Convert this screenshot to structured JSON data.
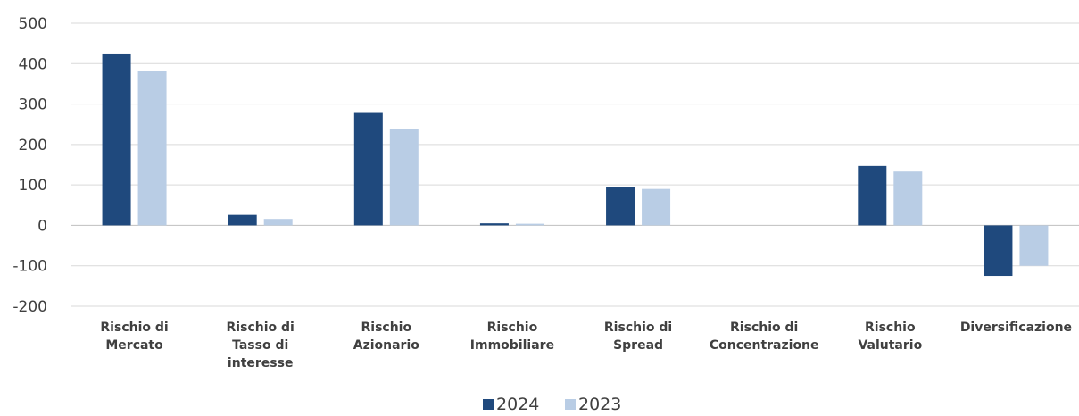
{
  "chart_data": {
    "type": "bar",
    "categories": [
      [
        "Rischio di",
        "Mercato"
      ],
      [
        "Rischio di",
        "Tasso di",
        "interesse"
      ],
      [
        "Rischio",
        "Azionario"
      ],
      [
        "Rischio",
        "Immobiliare"
      ],
      [
        "Rischio di",
        "Spread"
      ],
      [
        "Rischio di",
        "Concentrazione"
      ],
      [
        "Rischio",
        "Valutario"
      ],
      [
        "Diversificazione"
      ]
    ],
    "series": [
      {
        "name": "2024",
        "color": "#1f497d",
        "values": [
          425,
          26,
          278,
          5,
          95,
          0,
          147,
          -125
        ]
      },
      {
        "name": "2023",
        "color": "#b9cde5",
        "values": [
          382,
          16,
          238,
          4,
          90,
          0,
          133,
          -100
        ]
      }
    ],
    "yticks": [
      "500",
      "400",
      "300",
      "200",
      "100",
      "0",
      "-100",
      "-200"
    ],
    "ylim": [
      -200,
      500
    ],
    "grid": true,
    "legend_position": "bottom-center",
    "title": "",
    "xlabel": "",
    "ylabel": ""
  }
}
